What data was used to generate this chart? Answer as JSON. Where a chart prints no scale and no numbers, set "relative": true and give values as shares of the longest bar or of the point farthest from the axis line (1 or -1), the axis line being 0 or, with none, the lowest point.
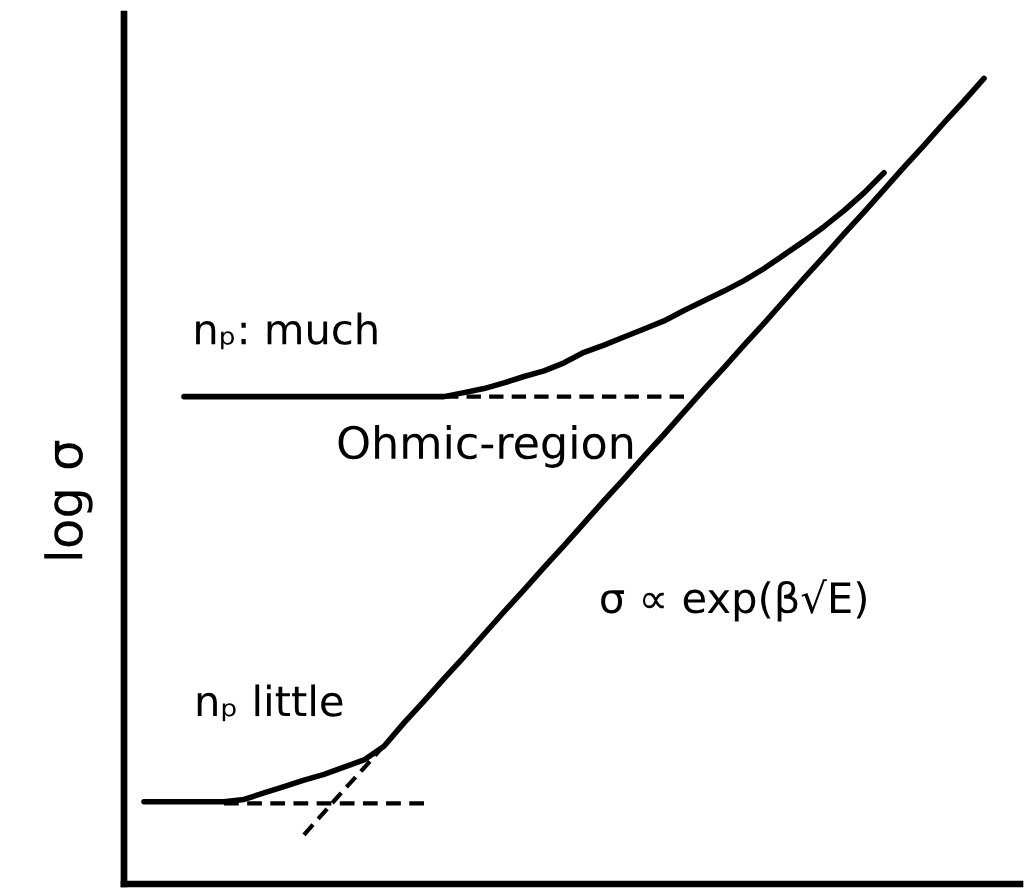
{
  "chart_data": {
    "type": "line",
    "relative": true,
    "ylabel": "log σ",
    "categories": [
      null,
      null,
      null,
      null,
      null,
      null,
      null,
      null,
      null,
      null,
      null,
      null,
      null,
      null,
      null,
      null,
      null,
      null,
      null,
      null,
      null,
      null,
      null,
      null,
      null,
      null,
      null,
      null,
      null,
      null,
      null,
      null,
      null,
      null,
      null,
      null,
      null,
      null,
      null,
      null,
      null,
      null,
      null,
      null
    ],
    "series": [
      {
        "name": "nₚ: much",
        "color": "#000000",
        "values": [
          null,
          null,
          0.605,
          0.605,
          0.605,
          0.605,
          0.605,
          0.605,
          0.605,
          0.605,
          0.605,
          0.605,
          0.605,
          0.605,
          0.605,
          0.605,
          0.61,
          0.615,
          0.622,
          0.63,
          0.637,
          0.647,
          0.66,
          0.669,
          0.679,
          0.689,
          0.699,
          0.712,
          0.724,
          0.736,
          0.749,
          0.764,
          0.781,
          0.798,
          0.816,
          0.836,
          0.858,
          0.883,
          null,
          null,
          null,
          null,
          null,
          null
        ]
      },
      {
        "color": "#000000",
        "line_style": "dashed",
        "values": [
          null,
          null,
          null,
          null,
          null,
          null,
          null,
          null,
          null,
          null,
          null,
          null,
          null,
          null,
          null,
          0.605,
          0.605,
          0.605,
          0.605,
          0.605,
          0.605,
          0.605,
          0.605,
          0.605,
          0.605,
          0.605,
          0.605,
          0.605,
          null,
          null,
          null,
          null,
          null,
          null,
          null,
          null,
          null,
          null,
          null,
          null,
          null,
          null,
          null,
          null
        ]
      },
      {
        "name": "nₚ little",
        "color": "#000000",
        "values": [
          0.102,
          0.102,
          0.102,
          0.102,
          0.102,
          0.105,
          0.113,
          0.121,
          0.129,
          0.136,
          0.145,
          0.154,
          0.171,
          0.2,
          0.227,
          0.255,
          0.282,
          0.31,
          0.338,
          0.365,
          0.393,
          0.42,
          0.448,
          0.476,
          0.503,
          0.531,
          0.558,
          0.586,
          0.614,
          0.641,
          0.669,
          0.696,
          0.724,
          0.752,
          0.779,
          0.807,
          0.834,
          0.862,
          0.89,
          0.917,
          0.945,
          0.972,
          1,
          null
        ]
      },
      {
        "color": "#000000",
        "line_style": "dashed",
        "values": [
          null,
          null,
          null,
          null,
          0.1,
          0.1,
          0.1,
          0.1,
          0.1,
          0.1,
          0.1,
          0.1,
          0.1,
          0.1,
          0.1,
          null,
          null,
          null,
          null,
          null,
          null,
          null,
          null,
          null,
          null,
          null,
          null,
          null,
          null,
          null,
          null,
          null,
          null,
          null,
          null,
          null,
          null,
          null,
          null,
          null,
          null,
          null,
          null,
          null
        ]
      },
      {
        "color": "#000000",
        "line_style": "dashed",
        "values": [
          null,
          null,
          null,
          null,
          null,
          null,
          null,
          null,
          0.061,
          0.089,
          0.117,
          0.144,
          0.172,
          null,
          null,
          null,
          null,
          null,
          null,
          null,
          null,
          null,
          null,
          null,
          null,
          null,
          null,
          null,
          null,
          null,
          null,
          null,
          null,
          null,
          null,
          null,
          null,
          null,
          null,
          null,
          null,
          null,
          null,
          null
        ]
      }
    ],
    "annotations": [
      "Ohmic-region",
      "σ ∝ exp(β√E)"
    ]
  }
}
